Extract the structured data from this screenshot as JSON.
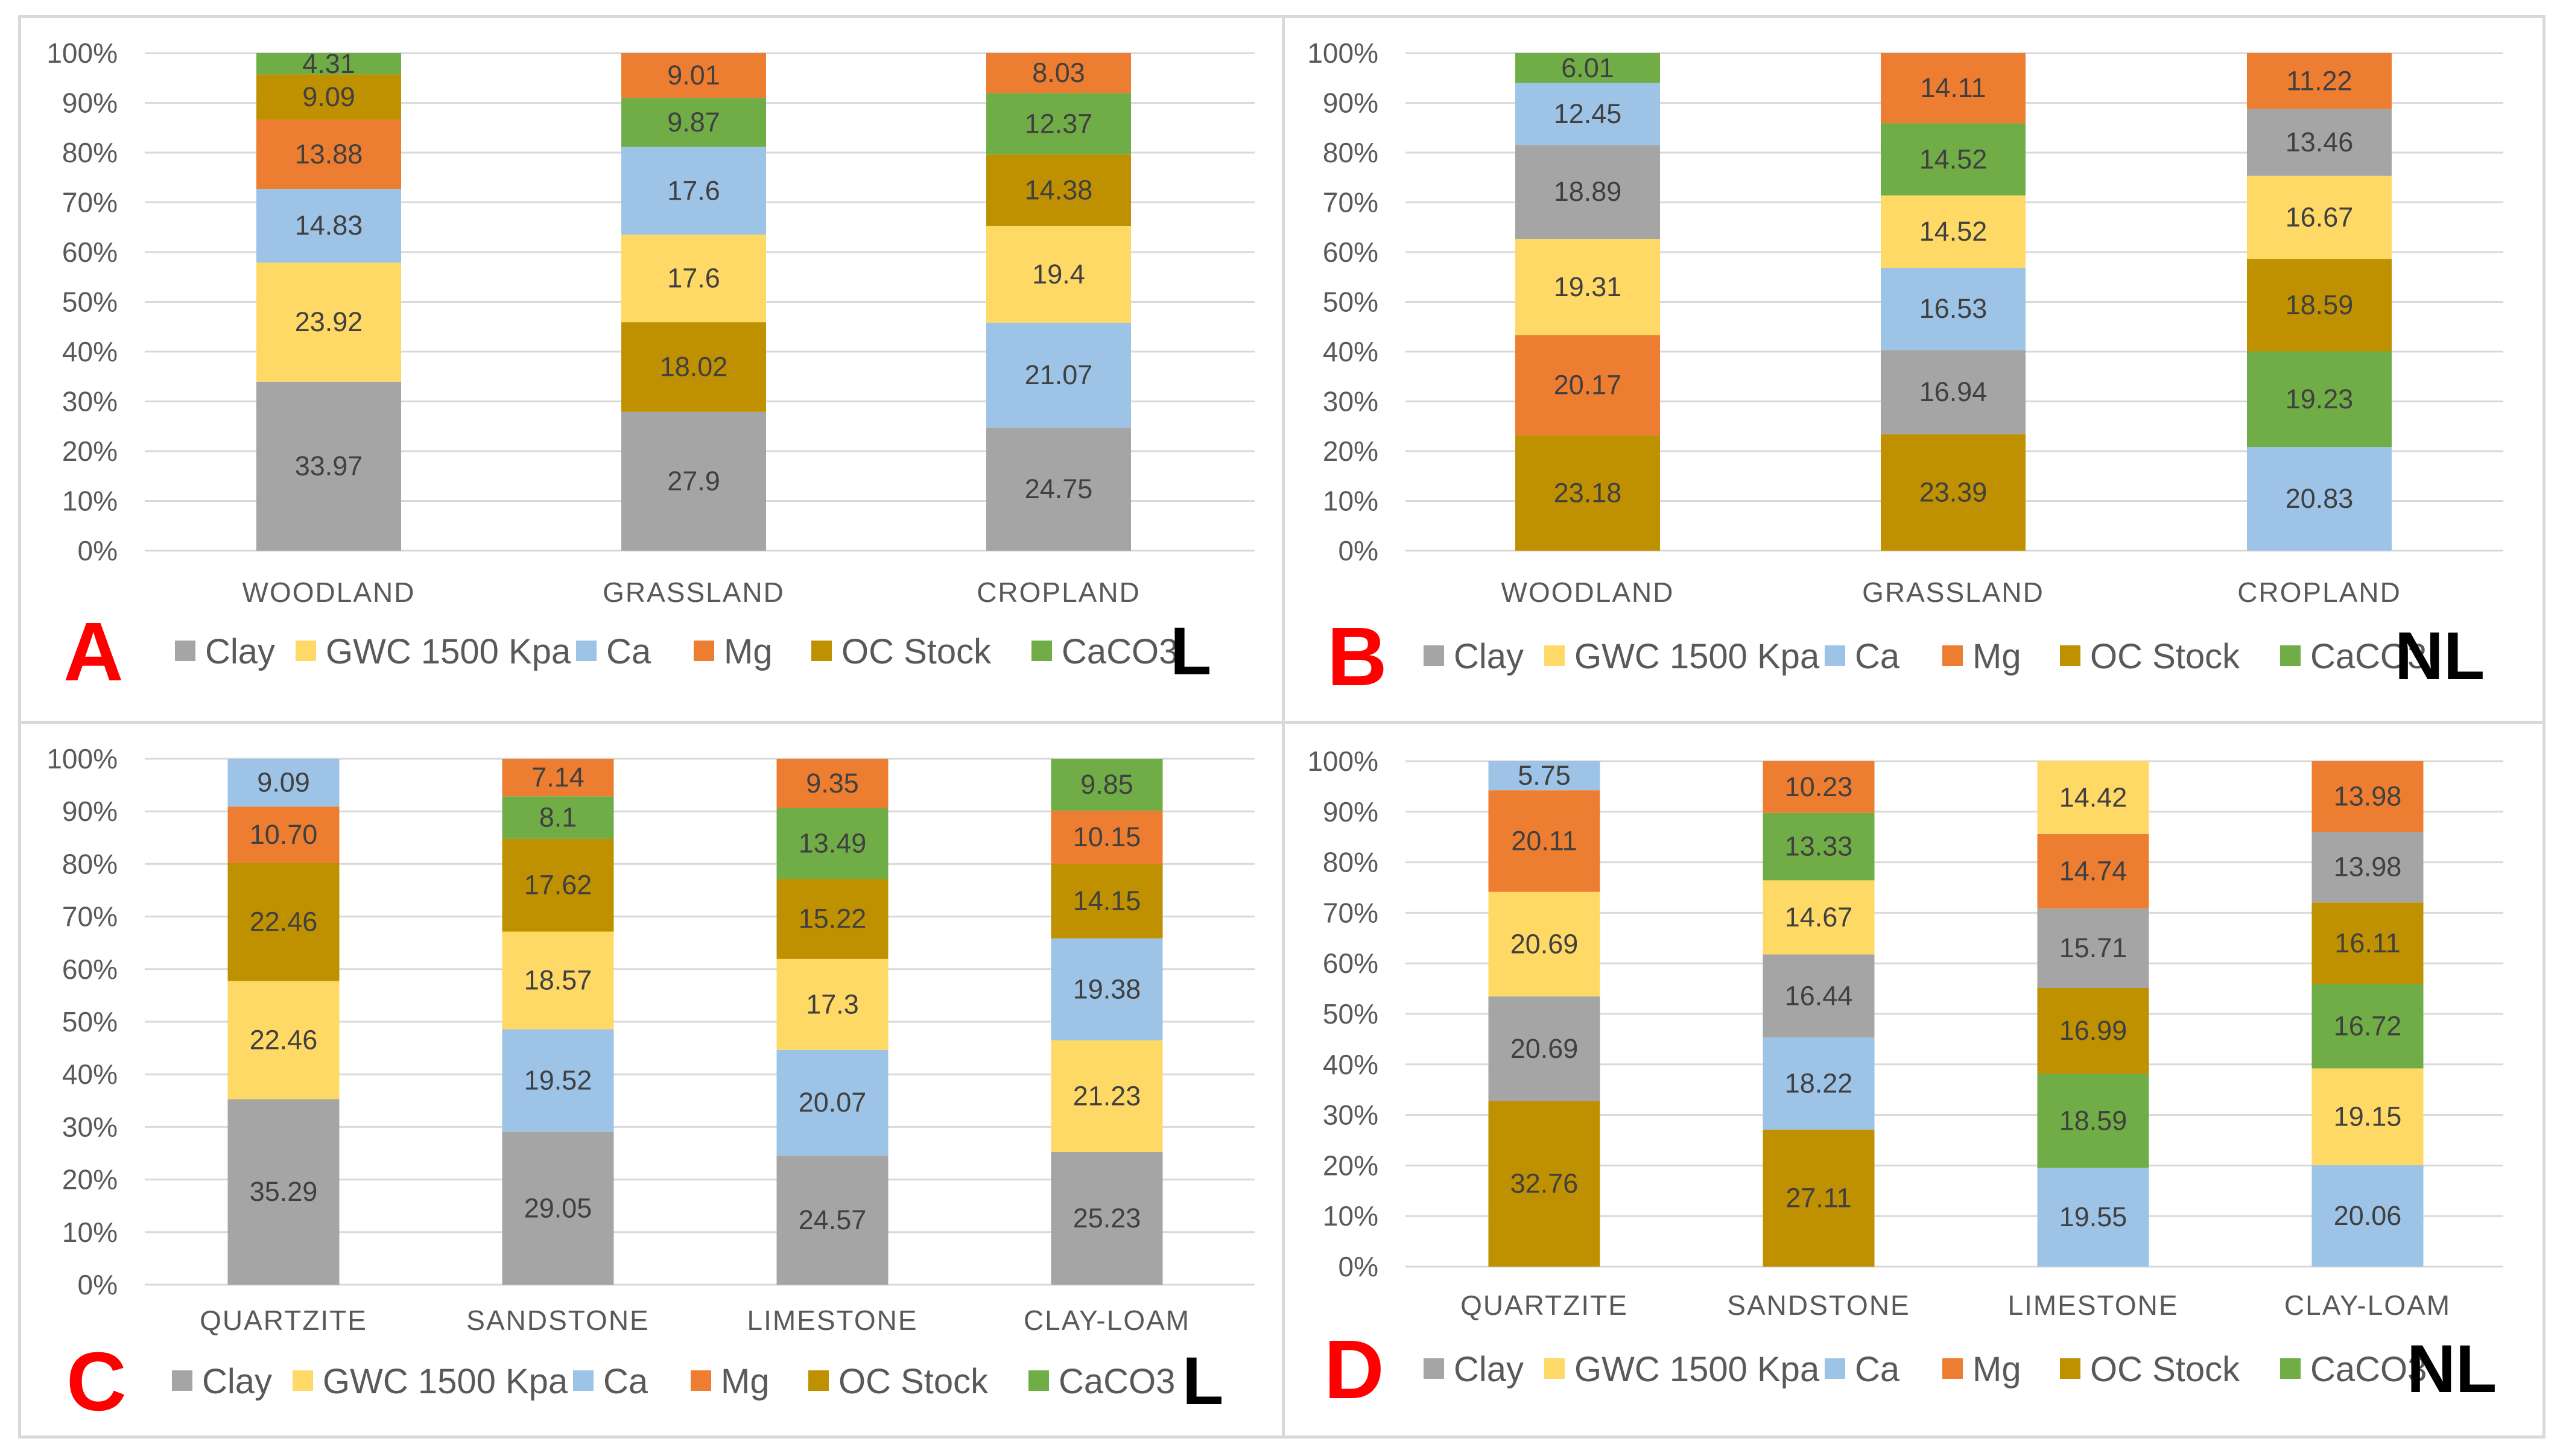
{
  "legend": [
    "Clay",
    "GWC 1500 Kpa",
    "Ca",
    "Mg",
    "OC Stock",
    "CaCO3"
  ],
  "colors": {
    "Clay": "#a5a5a5",
    "GWC 1500 Kpa": "#ffd966",
    "Ca": "#9dc3e6",
    "Mg": "#ed7d31",
    "OC Stock": "#bf9000",
    "CaCO3": "#70ad47"
  },
  "y_ticks": [
    "0%",
    "10%",
    "20%",
    "30%",
    "40%",
    "50%",
    "60%",
    "70%",
    "80%",
    "90%",
    "100%"
  ],
  "chart_data": [
    {
      "type": "bar",
      "stacked": "percent",
      "panel": "A",
      "tag": "L",
      "categories": [
        "WOODLAND",
        "GRASSLAND",
        "CROPLAND"
      ],
      "ylim": [
        0,
        100
      ],
      "stacks": [
        [
          [
            "Clay",
            "33.97"
          ],
          [
            "GWC 1500 Kpa",
            "23.92"
          ],
          [
            "Ca",
            "14.83"
          ],
          [
            "Mg",
            "13.88"
          ],
          [
            "OC Stock",
            "9.09"
          ],
          [
            "CaCO3",
            "4.31"
          ]
        ],
        [
          [
            "Clay",
            "27.9"
          ],
          [
            "OC Stock",
            "18.02"
          ],
          [
            "GWC 1500 Kpa",
            "17.6"
          ],
          [
            "Ca",
            "17.6"
          ],
          [
            "CaCO3",
            "9.87"
          ],
          [
            "Mg",
            "9.01"
          ]
        ],
        [
          [
            "Clay",
            "24.75"
          ],
          [
            "Ca",
            "21.07"
          ],
          [
            "GWC 1500 Kpa",
            "19.4"
          ],
          [
            "OC Stock",
            "14.38"
          ],
          [
            "CaCO3",
            "12.37"
          ],
          [
            "Mg",
            "8.03"
          ]
        ]
      ]
    },
    {
      "type": "bar",
      "stacked": "percent",
      "panel": "B",
      "tag": "NL",
      "categories": [
        "WOODLAND",
        "GRASSLAND",
        "CROPLAND"
      ],
      "ylim": [
        0,
        100
      ],
      "stacks": [
        [
          [
            "OC Stock",
            "23.18"
          ],
          [
            "Mg",
            "20.17"
          ],
          [
            "GWC 1500 Kpa",
            "19.31"
          ],
          [
            "Clay",
            "18.89"
          ],
          [
            "Ca",
            "12.45"
          ],
          [
            "CaCO3",
            "6.01"
          ]
        ],
        [
          [
            "OC Stock",
            "23.39"
          ],
          [
            "Clay",
            "16.94"
          ],
          [
            "Ca",
            "16.53"
          ],
          [
            "GWC 1500 Kpa",
            "14.52"
          ],
          [
            "CaCO3",
            "14.52"
          ],
          [
            "Mg",
            "14.11"
          ]
        ],
        [
          [
            "Ca",
            "20.83"
          ],
          [
            "CaCO3",
            "19.23"
          ],
          [
            "OC Stock",
            "18.59"
          ],
          [
            "GWC 1500 Kpa",
            "16.67"
          ],
          [
            "Clay",
            "13.46"
          ],
          [
            "Mg",
            "11.22"
          ]
        ]
      ]
    },
    {
      "type": "bar",
      "stacked": "percent",
      "panel": "C",
      "tag": "L",
      "categories": [
        "QUARTZITE",
        "SANDSTONE",
        "LIMESTONE",
        "CLAY-LOAM"
      ],
      "ylim": [
        0,
        100
      ],
      "stacks": [
        [
          [
            "Clay",
            "35.29"
          ],
          [
            "GWC 1500 Kpa",
            "22.46"
          ],
          [
            "OC Stock",
            "22.46"
          ],
          [
            "Mg",
            "10.70"
          ],
          [
            "Ca",
            "9.09"
          ]
        ],
        [
          [
            "Clay",
            "29.05"
          ],
          [
            "Ca",
            "19.52"
          ],
          [
            "GWC 1500 Kpa",
            "18.57"
          ],
          [
            "OC Stock",
            "17.62"
          ],
          [
            "CaCO3",
            "8.1"
          ],
          [
            "Mg",
            "7.14"
          ]
        ],
        [
          [
            "Clay",
            "24.57"
          ],
          [
            "Ca",
            "20.07"
          ],
          [
            "GWC 1500 Kpa",
            "17.3"
          ],
          [
            "OC Stock",
            "15.22"
          ],
          [
            "CaCO3",
            "13.49"
          ],
          [
            "Mg",
            "9.35"
          ]
        ],
        [
          [
            "Clay",
            "25.23"
          ],
          [
            "GWC 1500 Kpa",
            "21.23"
          ],
          [
            "Ca",
            "19.38"
          ],
          [
            "OC Stock",
            "14.15"
          ],
          [
            "Mg",
            "10.15"
          ],
          [
            "CaCO3",
            "9.85"
          ]
        ]
      ]
    },
    {
      "type": "bar",
      "stacked": "percent",
      "panel": "D",
      "tag": "NL",
      "categories": [
        "QUARTZITE",
        "SANDSTONE",
        "LIMESTONE",
        "CLAY-LOAM"
      ],
      "ylim": [
        0,
        100
      ],
      "stacks": [
        [
          [
            "OC Stock",
            "32.76"
          ],
          [
            "Clay",
            "20.69"
          ],
          [
            "GWC 1500 Kpa",
            "20.69"
          ],
          [
            "Mg",
            "20.11"
          ],
          [
            "Ca",
            "5.75"
          ]
        ],
        [
          [
            "OC Stock",
            "27.11"
          ],
          [
            "Ca",
            "18.22"
          ],
          [
            "Clay",
            "16.44"
          ],
          [
            "GWC 1500 Kpa",
            "14.67"
          ],
          [
            "CaCO3",
            "13.33"
          ],
          [
            "Mg",
            "10.23"
          ]
        ],
        [
          [
            "Ca",
            "19.55"
          ],
          [
            "CaCO3",
            "18.59"
          ],
          [
            "OC Stock",
            "16.99"
          ],
          [
            "Clay",
            "15.71"
          ],
          [
            "Mg",
            "14.74"
          ],
          [
            "GWC 1500 Kpa",
            "14.42"
          ]
        ],
        [
          [
            "Ca",
            "20.06"
          ],
          [
            "GWC 1500 Kpa",
            "19.15"
          ],
          [
            "CaCO3",
            "16.72"
          ],
          [
            "OC Stock",
            "16.11"
          ],
          [
            "Clay",
            "13.98"
          ],
          [
            "Mg",
            "13.98"
          ]
        ]
      ]
    }
  ]
}
